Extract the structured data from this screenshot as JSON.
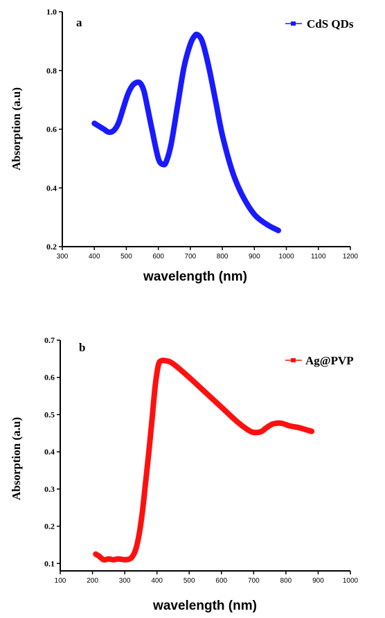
{
  "chart_data": [
    {
      "type": "line",
      "panel_label": "a",
      "title": "",
      "xlabel": "wavelength (nm)",
      "ylabel": "Absorption (a.u)",
      "xlim": [
        300,
        1200
      ],
      "ylim": [
        0.2,
        1.0
      ],
      "x_ticks": [
        300,
        400,
        500,
        600,
        700,
        800,
        900,
        1000,
        1100,
        1200
      ],
      "y_ticks": [
        0.2,
        0.4,
        0.6,
        0.8,
        1.0
      ],
      "y_tick_labels": [
        "0.2",
        "0.4",
        "0.6",
        "0.8",
        "1.0"
      ],
      "legend_position": "top-right",
      "series": [
        {
          "name": "CdS QDs",
          "color": "#1a1aff",
          "x": [
            400,
            415,
            430,
            445,
            460,
            475,
            490,
            505,
            520,
            535,
            545,
            555,
            565,
            580,
            600,
            615,
            625,
            640,
            660,
            680,
            700,
            715,
            725,
            735,
            745,
            760,
            780,
            800,
            830,
            860,
            900,
            940,
            975
          ],
          "y": [
            0.62,
            0.61,
            0.6,
            0.59,
            0.595,
            0.62,
            0.67,
            0.72,
            0.75,
            0.76,
            0.755,
            0.73,
            0.68,
            0.6,
            0.5,
            0.48,
            0.49,
            0.55,
            0.68,
            0.81,
            0.89,
            0.92,
            0.92,
            0.905,
            0.87,
            0.8,
            0.69,
            0.58,
            0.46,
            0.38,
            0.31,
            0.275,
            0.255
          ]
        }
      ]
    },
    {
      "type": "line",
      "panel_label": "b",
      "title": "",
      "xlabel": "wavelength (nm)",
      "ylabel": "Absorption (a.u)",
      "xlim": [
        100,
        1000
      ],
      "ylim": [
        0.08,
        0.7
      ],
      "x_ticks": [
        100,
        200,
        300,
        400,
        500,
        600,
        700,
        800,
        900,
        1000
      ],
      "y_ticks": [
        0.1,
        0.2,
        0.3,
        0.4,
        0.5,
        0.6,
        0.7
      ],
      "y_tick_labels": [
        "0.1",
        "0.2",
        "0.3",
        "0.4",
        "0.5",
        "0.6",
        "0.7"
      ],
      "legend_position": "top-right",
      "series": [
        {
          "name": "Ag@PVP",
          "color": "#ff1010",
          "x": [
            210,
            220,
            235,
            250,
            265,
            280,
            300,
            315,
            325,
            335,
            345,
            355,
            365,
            375,
            385,
            395,
            405,
            415,
            425,
            440,
            460,
            500,
            550,
            600,
            650,
            690,
            710,
            725,
            740,
            760,
            785,
            810,
            840,
            860,
            880
          ],
          "y": [
            0.125,
            0.12,
            0.11,
            0.112,
            0.11,
            0.112,
            0.11,
            0.112,
            0.12,
            0.14,
            0.18,
            0.24,
            0.32,
            0.4,
            0.49,
            0.58,
            0.635,
            0.645,
            0.645,
            0.642,
            0.63,
            0.6,
            0.56,
            0.52,
            0.48,
            0.455,
            0.452,
            0.455,
            0.465,
            0.475,
            0.477,
            0.47,
            0.465,
            0.46,
            0.455
          ]
        }
      ]
    }
  ]
}
